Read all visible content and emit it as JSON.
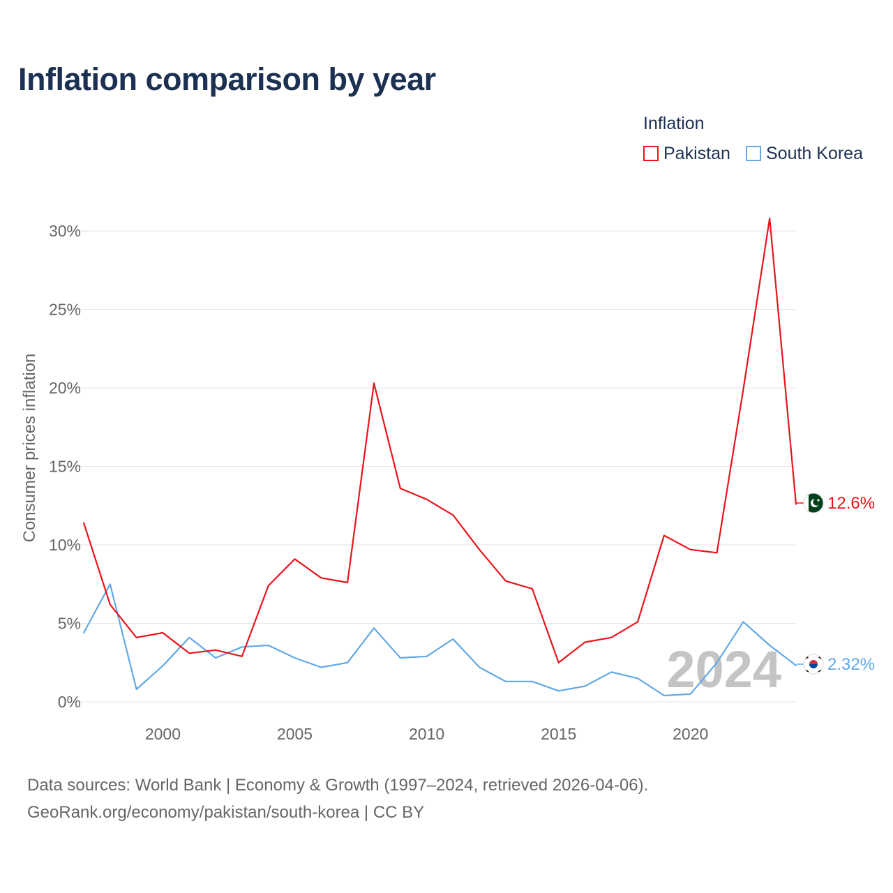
{
  "title": "Inflation comparison by year",
  "legend": {
    "title": "Inflation",
    "items": [
      {
        "name": "Pakistan",
        "color": "#e8151b"
      },
      {
        "name": "South Korea",
        "color": "#62a8e5"
      }
    ]
  },
  "footer": {
    "line1": "Data sources: World Bank | Economy & Growth (1997–2024, retrieved 2026-04-06).",
    "line2": "GeoRank.org/economy/pakistan/south-korea | CC BY"
  },
  "watermark_year": "2024",
  "end_labels": {
    "pakistan": "12.6%",
    "south_korea": "2.32%"
  },
  "flag_icons": {
    "pakistan": "pakistan-flag-icon",
    "south_korea": "south-korea-flag-icon"
  },
  "colors": {
    "pakistan": "#e8151b",
    "south_korea": "#62a8e5",
    "title": "#1c3152",
    "axis_text": "#666666",
    "grid": "#e6e6e6",
    "watermark": "#c4c4c4"
  },
  "chart_data": {
    "type": "line",
    "title": "Inflation comparison by year",
    "xlabel": "",
    "ylabel": "Consumer prices inflation",
    "xlim": [
      1997,
      2024
    ],
    "ylim": [
      0,
      31
    ],
    "x_ticks": [
      2000,
      2005,
      2010,
      2015,
      2020
    ],
    "y_ticks": [
      0,
      5,
      10,
      15,
      20,
      25,
      30
    ],
    "y_tick_labels": [
      "0%",
      "5%",
      "10%",
      "15%",
      "20%",
      "25%",
      "30%"
    ],
    "grid": true,
    "legend_position": "top-right",
    "x": [
      1997,
      1998,
      1999,
      2000,
      2001,
      2002,
      2003,
      2004,
      2005,
      2006,
      2007,
      2008,
      2009,
      2010,
      2011,
      2012,
      2013,
      2014,
      2015,
      2016,
      2017,
      2018,
      2019,
      2020,
      2021,
      2022,
      2023,
      2024
    ],
    "series": [
      {
        "name": "Pakistan",
        "values": [
          11.4,
          6.2,
          4.1,
          4.4,
          3.1,
          3.3,
          2.9,
          7.4,
          9.1,
          7.9,
          7.6,
          20.3,
          13.6,
          12.9,
          11.9,
          9.7,
          7.7,
          7.2,
          2.5,
          3.8,
          4.1,
          5.1,
          10.6,
          9.7,
          9.5,
          19.9,
          30.8,
          12.6
        ]
      },
      {
        "name": "South Korea",
        "values": [
          4.4,
          7.5,
          0.8,
          2.3,
          4.1,
          2.8,
          3.5,
          3.6,
          2.8,
          2.2,
          2.5,
          4.7,
          2.8,
          2.9,
          4.0,
          2.2,
          1.3,
          1.3,
          0.7,
          1.0,
          1.9,
          1.5,
          0.4,
          0.5,
          2.5,
          5.1,
          3.6,
          2.32
        ]
      }
    ]
  }
}
